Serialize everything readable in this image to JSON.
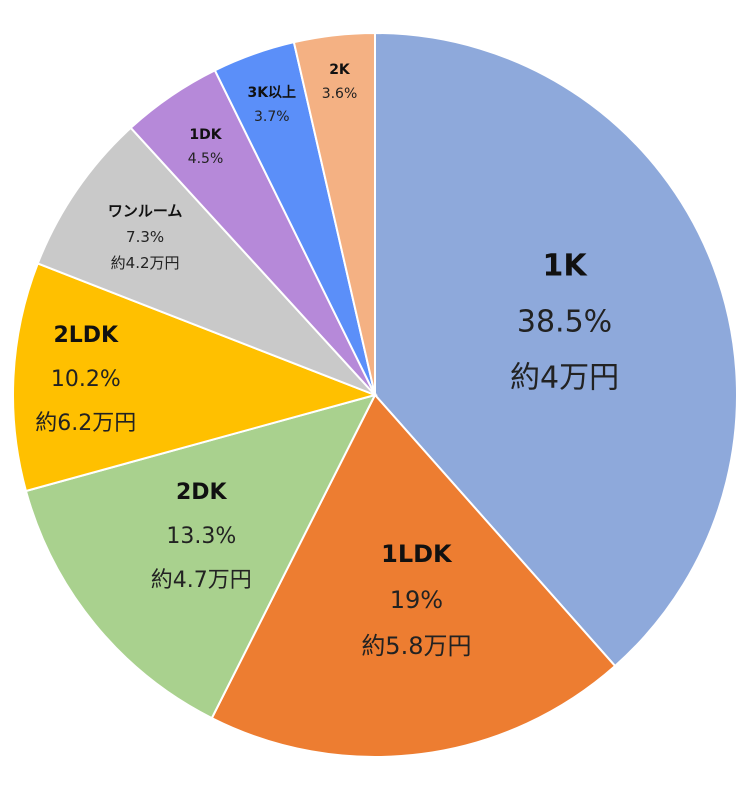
{
  "chart_data": {
    "type": "pie",
    "title": "",
    "start_angle_deg": 0,
    "direction": "clockwise",
    "slices": [
      {
        "name": "1K",
        "value": 38.5,
        "percent_label": "38.5%",
        "price_label": "約4万円",
        "color": "#8EA9DB"
      },
      {
        "name": "1LDK",
        "value": 19.0,
        "percent_label": "19%",
        "price_label": "約5.8万円",
        "color": "#ED7D31"
      },
      {
        "name": "2DK",
        "value": 13.3,
        "percent_label": "13.3%",
        "price_label": "約4.7万円",
        "color": "#A9D18E"
      },
      {
        "name": "2LDK",
        "value": 10.2,
        "percent_label": "10.2%",
        "price_label": "約6.2万円",
        "color": "#FFC000"
      },
      {
        "name": "ワンルーム",
        "value": 7.3,
        "percent_label": "7.3%",
        "price_label": "約4.2万円",
        "color": "#C9C9C9"
      },
      {
        "name": "1DK",
        "value": 4.5,
        "percent_label": "4.5%",
        "price_label": "",
        "color": "#B689D9"
      },
      {
        "name": "3K以上",
        "value": 3.7,
        "percent_label": "3.7%",
        "price_label": "",
        "color": "#5B8FF9"
      },
      {
        "name": "2K",
        "value": 3.6,
        "percent_label": "3.6%",
        "price_label": "",
        "color": "#F4B183"
      }
    ]
  }
}
